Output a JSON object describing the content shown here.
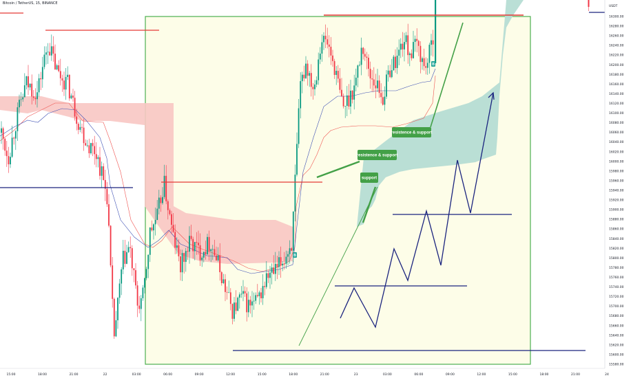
{
  "chart_data": {
    "type": "candlestick",
    "title": "Bitcoin / TetherUS, 15, BINANCE",
    "currency_label": "USDT",
    "yticks": [
      16300,
      16280,
      16260,
      16240,
      16220,
      16200,
      16180,
      16160,
      16140,
      16120,
      16100,
      16080,
      16060,
      16040,
      16020,
      16000,
      15980,
      15960,
      15940,
      15920,
      15900,
      15880,
      15860,
      15840,
      15820,
      15800,
      15780,
      15760,
      15740,
      15720,
      15700,
      15680,
      15660,
      15640,
      15620,
      15600,
      15580
    ],
    "xticks": [
      "15:00",
      "18:00",
      "21:00",
      "22",
      "03:00",
      "06:00",
      "09:00",
      "12:00",
      "15:00",
      "18:00",
      "21:00",
      "23",
      "03:00",
      "06:00",
      "09:00",
      "12:00",
      "15:00",
      "18:00",
      "21:00",
      "24"
    ],
    "ylim": [
      15575,
      16318
    ],
    "grid": false,
    "annotations": [
      "resistence & support",
      "resistence & support",
      "support"
    ],
    "candle_markers": [
      "B",
      "B"
    ],
    "colors": {
      "up": "#089981",
      "down": "#f23645",
      "kumo_bear": "#f8c7c3",
      "kumo_bull": "#b6ddd4",
      "box_fill": "#fdfde8",
      "box_border": "#4caf50",
      "support_line": "#1a237e",
      "resistance_line": "#e53935",
      "note_bg": "#43a047",
      "marker_bg": "#26a69a"
    }
  }
}
